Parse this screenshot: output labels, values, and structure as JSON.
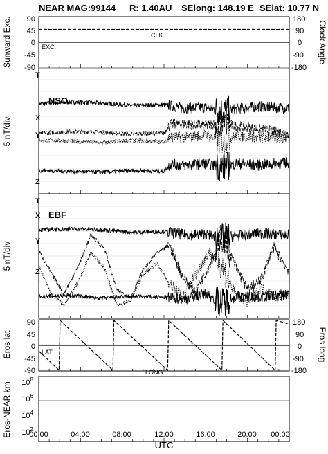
{
  "title": {
    "mission": "NEAR MAG:",
    "date": "99144",
    "range": "R: 1.40AU",
    "selong": "SElong:  148.19 E",
    "selat": "SElat:   10.77 N"
  },
  "xaxis": {
    "label": "UTC",
    "ticks": [
      "00:00",
      "04:00",
      "08:00",
      "12:00",
      "16:00",
      "20:00",
      "00:00"
    ],
    "range_hours": [
      0,
      24
    ]
  },
  "panels": {
    "sun": {
      "left_label": "Sunward Exc.",
      "right_label": "Clock Angle",
      "left_ticks": [
        "90",
        "45",
        "0",
        "-45",
        "-90"
      ],
      "right_ticks": [
        "180",
        "90",
        "0",
        "-90",
        "-180"
      ],
      "trace_labels": [
        "CLK",
        "EXC."
      ]
    },
    "nso": {
      "label": "5 nT/div",
      "title": "NSO",
      "trace_labels": [
        "T",
        "X",
        "Y",
        "Z"
      ]
    },
    "ebf": {
      "label": "5 nT/div",
      "title": "EBF",
      "trace_labels": [
        "T",
        "X",
        "Y",
        "Z"
      ]
    },
    "eros": {
      "left_label": "Eros lat",
      "right_label": "Eros long",
      "left_ticks": [
        "90",
        "45",
        "0",
        "-45",
        "-90"
      ],
      "right_ticks": [
        "180",
        "90",
        "0",
        "-90",
        "-180"
      ],
      "trace_labels": [
        "LAT",
        "LONG"
      ]
    },
    "dist": {
      "label": "Eros-NEAR km",
      "ticks": [
        {
          "mantissa": "10",
          "exp": "8"
        },
        {
          "mantissa": "10",
          "exp": "6"
        },
        {
          "mantissa": "10",
          "exp": "4"
        },
        {
          "mantissa": "10",
          "exp": "2"
        }
      ]
    }
  },
  "chart_data": {
    "type": "line",
    "x_unit": "hours UTC",
    "series": [
      {
        "name": "CLK",
        "panel": "sun",
        "style": "dashed",
        "x": [
          0,
          24
        ],
        "values": [
          45,
          45
        ]
      },
      {
        "name": "EXC.",
        "panel": "sun",
        "style": "solid",
        "x": [
          0,
          24
        ],
        "values": [
          0,
          0
        ]
      },
      {
        "name": "LAT",
        "panel": "eros",
        "style": "solid",
        "x": [
          0,
          24
        ],
        "values": [
          0,
          0
        ]
      },
      {
        "name": "LONG",
        "panel": "eros",
        "style": "dashed",
        "x": [
          0.0,
          1.95,
          2.05,
          7.1,
          7.2,
          12.35,
          12.45,
          17.55,
          17.65,
          22.65,
          22.75,
          24.0
        ],
        "values": [
          -40,
          -175,
          175,
          -175,
          175,
          -175,
          175,
          -175,
          175,
          -175,
          175,
          150
        ]
      },
      {
        "name": "Eros-NEAR km",
        "panel": "dist",
        "style": "solid",
        "x": [
          0,
          24
        ],
        "values": [
          1000000,
          1000000
        ]
      }
    ],
    "magnetometer": {
      "units": "5 nT/div",
      "nso": {
        "T": {
          "x": [
            0,
            3,
            6,
            9,
            12,
            14,
            16,
            17.5,
            19,
            21,
            24
          ],
          "values": [
            3.2,
            3.4,
            3.3,
            3.0,
            3.1,
            2.7,
            2.8,
            2.4,
            2.6,
            2.9,
            2.7
          ]
        },
        "X": {
          "x": [
            0,
            3,
            6,
            9,
            12,
            12.6,
            14,
            16,
            17.5,
            19,
            21,
            24
          ],
          "values": [
            -0.2,
            0.0,
            -0.1,
            -0.3,
            -0.2,
            0.8,
            0.9,
            0.7,
            1.0,
            0.6,
            0.3,
            -0.3
          ]
        },
        "Y": {
          "x": [
            0,
            3,
            6,
            9,
            12,
            12.6,
            14,
            16,
            17.5,
            19,
            21,
            24
          ],
          "values": [
            -1.0,
            -1.1,
            -1.3,
            -1.0,
            -1.2,
            -0.6,
            -0.7,
            -0.4,
            -1.1,
            -0.5,
            -0.7,
            -0.7
          ]
        },
        "Z": {
          "x": [
            0,
            3,
            6,
            9,
            12,
            12.6,
            14,
            16,
            17.5,
            19,
            21,
            24
          ],
          "values": [
            -4.5,
            -4.6,
            -4.7,
            -4.5,
            -4.6,
            -3.8,
            -3.9,
            -3.7,
            -4.1,
            -3.7,
            -3.9,
            -3.6
          ]
        }
      },
      "ebf": {
        "T": {
          "x": [
            0,
            3,
            6,
            9,
            12,
            14,
            16,
            17.5,
            19,
            21,
            24
          ],
          "values": [
            3.2,
            3.3,
            3.2,
            2.9,
            3.0,
            2.6,
            2.7,
            2.3,
            2.5,
            2.8,
            2.6
          ]
        },
        "X": {
          "x": [
            0,
            1.2,
            2.4,
            3.8,
            5.0,
            6.3,
            7.5,
            8.8,
            10.0,
            11.3,
            12.5,
            13.8,
            15.0,
            16.3,
            17.5,
            18.8,
            20.0,
            21.3,
            22.5,
            24.0
          ],
          "values": [
            0.8,
            -1.8,
            -4.2,
            -1.0,
            2.6,
            1.0,
            -3.8,
            -4.6,
            -1.5,
            0.5,
            1.4,
            -2.2,
            -4.0,
            -1.0,
            2.4,
            -0.8,
            -3.8,
            -2.6,
            1.2,
            -1.6
          ]
        },
        "Y": {
          "x": [
            0,
            1.2,
            2.4,
            3.8,
            5.0,
            6.3,
            7.5,
            8.8,
            10.0,
            11.3,
            12.5,
            13.8,
            15.0,
            16.3,
            17.5,
            18.8,
            20.0,
            21.3,
            22.5,
            24.0
          ],
          "values": [
            -1.0,
            -4.2,
            -5.5,
            -2.8,
            0.6,
            -1.2,
            -5.6,
            -5.0,
            -2.0,
            -0.6,
            -3.0,
            -4.5,
            -2.0,
            0.6,
            -0.8,
            -4.2,
            -5.2,
            -3.5,
            -4.5,
            -4.5
          ]
        },
        "Z": {
          "x": [
            0,
            3,
            6,
            9,
            12,
            14,
            16,
            17.5,
            19,
            21,
            24
          ],
          "values": [
            -4.5,
            -4.4,
            -4.7,
            -4.5,
            -4.6,
            -4.8,
            -4.2,
            -5.2,
            -4.5,
            -4.6,
            -4.2
          ]
        }
      }
    }
  }
}
